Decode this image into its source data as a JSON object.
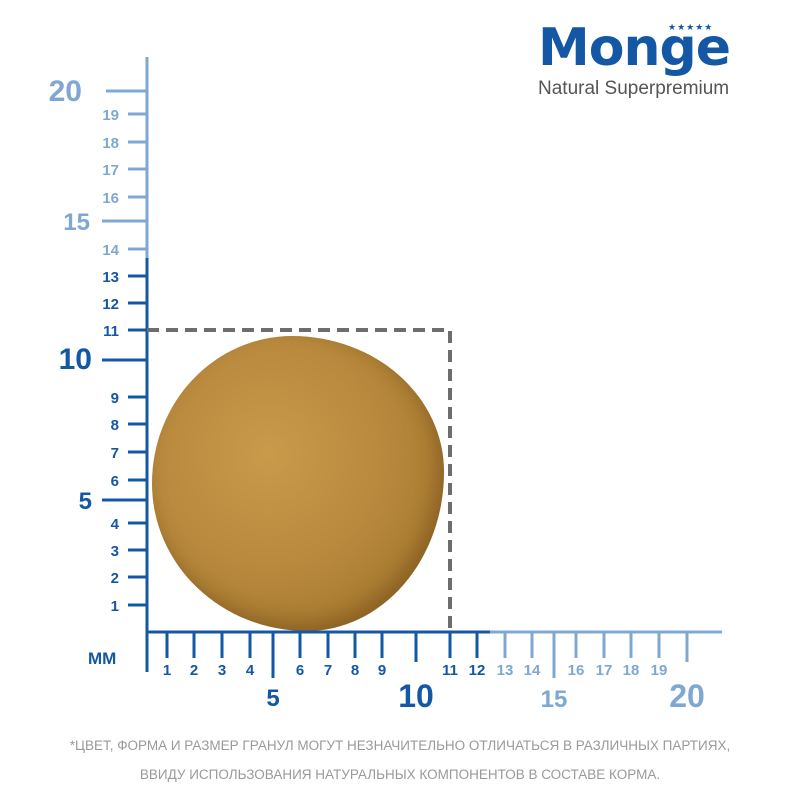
{
  "brand": {
    "name": "Monge",
    "tagline": "Natural Superpremium"
  },
  "ruler": {
    "unit_label": "мм",
    "x_axis": {
      "min": 0,
      "max": 20,
      "highlight_max": 12,
      "labels": [
        "1",
        "2",
        "3",
        "4",
        "5",
        "6",
        "7",
        "8",
        "9",
        "10",
        "11",
        "12",
        "13",
        "14",
        "15",
        "16",
        "17",
        "18",
        "19",
        "20"
      ]
    },
    "y_axis": {
      "min": 0,
      "max": 20,
      "highlight_max": 13,
      "labels": [
        "1",
        "2",
        "3",
        "4",
        "5",
        "6",
        "7",
        "8",
        "9",
        "10",
        "11",
        "12",
        "13",
        "14",
        "15",
        "16",
        "17",
        "18",
        "19",
        "20"
      ]
    },
    "kibble_size_mm": {
      "width": 11,
      "height": 11
    }
  },
  "colors": {
    "dark_blue": "#1457a5",
    "light_blue": "#7ea8d2",
    "dashed_box": "#6d6d6d"
  },
  "footnote": {
    "line1": "*ЦВЕТ, ФОРМА И РАЗМЕР ГРАНУЛ МОГУТ НЕЗНАЧИТЕЛЬНО ОТЛИЧАТЬСЯ В РАЗЛИЧНЫХ ПАРТИЯХ,",
    "line2": "ВВИДУ ИСПОЛЬЗОВАНИЯ НАТУРАЛЬНЫХ КОМПОНЕНТОВ В СОСТАВЕ КОРМА."
  }
}
